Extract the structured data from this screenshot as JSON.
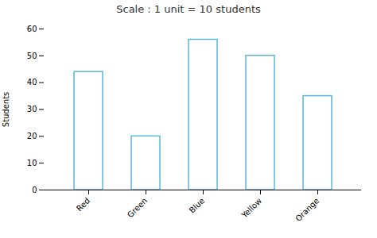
{
  "chart_data": {
    "type": "bar",
    "title": "Scale : 1 unit = 10 students",
    "ylabel": "Students",
    "categories": [
      "Red",
      "Green",
      "Blue",
      "Yellow",
      "Orange"
    ],
    "values": [
      44,
      20,
      56,
      50,
      35
    ],
    "color": "#5BB8D4",
    "ylim": [
      0,
      60
    ],
    "yticks": [
      0,
      10,
      20,
      30,
      40,
      50,
      60
    ],
    "grid": false
  }
}
